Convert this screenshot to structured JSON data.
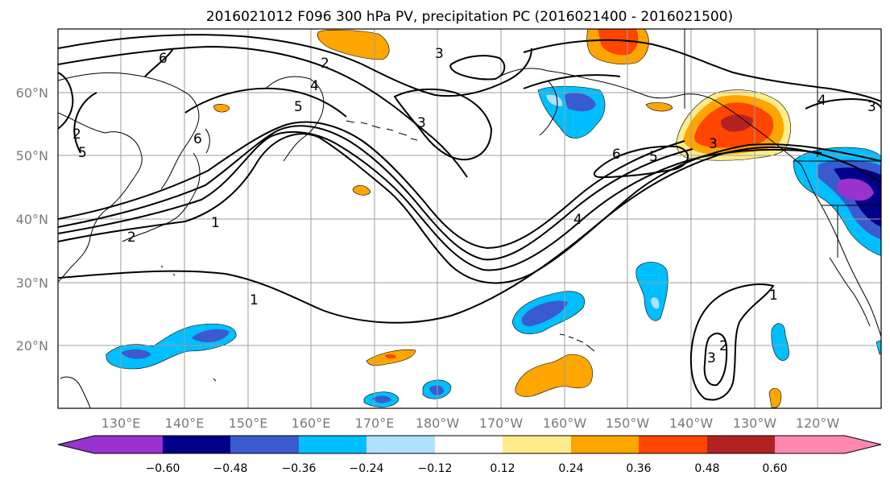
{
  "title": "2016021012 F096 300 hPa PV, precipitation PC (2016021400 - 2016021500)",
  "lat_labels": [
    "60°N",
    "50°N",
    "40°N",
    "30°N",
    "20°N"
  ],
  "lon_labels": [
    "130°E",
    "140°E",
    "150°E",
    "160°E",
    "170°E",
    "180°W",
    "170°W",
    "160°W",
    "150°W",
    "140°W",
    "130°W",
    "120°W"
  ],
  "pv_contour_labels": [
    "6",
    "5",
    "2",
    "3",
    "4",
    "5",
    "6",
    "1",
    "2",
    "3",
    "1",
    "2",
    "3",
    "4",
    "5",
    "6",
    "3",
    "1",
    "2",
    "3",
    "4"
  ],
  "colorbar": {
    "ticks": [
      "−0.60",
      "−0.48",
      "−0.36",
      "−0.24",
      "−0.12",
      "0.12",
      "0.24",
      "0.36",
      "0.48",
      "0.60"
    ],
    "colors": [
      "#9a32cd",
      "#00008b",
      "#3a5bd0",
      "#00bfff",
      "#b0e0ff",
      "#ffffff",
      "#ffec8b",
      "#ffa500",
      "#ff4500",
      "#b22222",
      "#ff88b0"
    ]
  }
}
